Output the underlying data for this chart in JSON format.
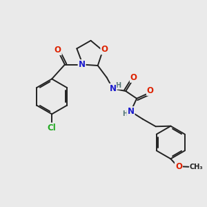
{
  "bg_color": "#eaeaea",
  "bond_color": "#222222",
  "bond_width": 1.4,
  "atom_colors": {
    "O": "#dd2200",
    "N": "#1a1acc",
    "Cl": "#22aa22",
    "H": "#557777"
  },
  "font_size_atom": 8.5,
  "font_size_small": 7.0,
  "xlim": [
    0,
    10
  ],
  "ylim": [
    0,
    10
  ]
}
